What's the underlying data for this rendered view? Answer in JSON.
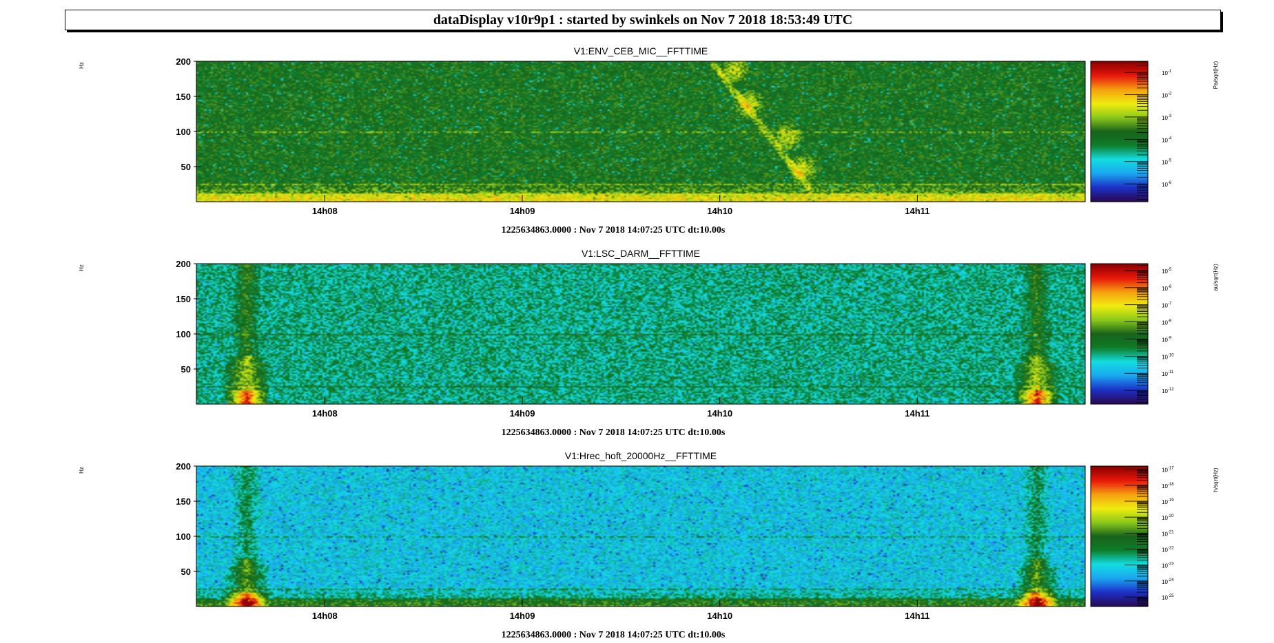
{
  "page_title": "dataDisplay v10r9p1 : started by swinkels on Nov  7 2018 18:53:49 UTC",
  "chart_data": [
    {
      "type": "heatmap",
      "title": "V1:ENV_CEB_MIC__FFTTIME",
      "ylabel": "Hz",
      "footer": "1225634863.0000 : Nov  7 2018 14:07:25 UTC dt:10.00s",
      "x_ticks": [
        "14h08",
        "14h09",
        "14h10",
        "14h11"
      ],
      "y_ticks": [
        50,
        100,
        150,
        200
      ],
      "ylim": [
        0,
        200
      ],
      "colorbar": {
        "unit": "Pa/sqrt(Hz)",
        "scale": "log",
        "range_exp": [
          -6.8,
          -0.5
        ],
        "tick_exponents": [
          "-1",
          "-2",
          "-3",
          "-4",
          "-5",
          "-6"
        ]
      },
      "palette": [
        "#2a0a55",
        "#1d31c8",
        "#1aa8f0",
        "#13dde0",
        "#0e7d2a",
        "#18631b",
        "#8cc81c",
        "#f0ec10",
        "#f5a00f",
        "#e8180c",
        "#8a0000"
      ],
      "background_level": 0.47,
      "features": [
        "whistle-chirp",
        "low-frequency-band",
        "spectral-lines"
      ]
    },
    {
      "type": "heatmap",
      "title": "V1:LSC_DARM__FFTTIME",
      "ylabel": "Hz",
      "footer": "1225634863.0000 : Nov  7 2018 14:07:25 UTC dt:10.00s",
      "x_ticks": [
        "14h08",
        "14h09",
        "14h10",
        "14h11"
      ],
      "y_ticks": [
        50,
        100,
        150,
        200
      ],
      "ylim": [
        0,
        200
      ],
      "colorbar": {
        "unit": "au/sqrt(Hz)",
        "scale": "log",
        "range_exp": [
          -12.8,
          -4.6
        ],
        "tick_exponents": [
          "-5",
          "-6",
          "-7",
          "-8",
          "-9",
          "-10",
          "-11",
          "-12"
        ]
      },
      "palette": [
        "#2a0a55",
        "#1d31c8",
        "#1aa8f0",
        "#13dde0",
        "#0e7d2a",
        "#18631b",
        "#8cc81c",
        "#f0ec10",
        "#f5a00f",
        "#e8180c",
        "#8a0000"
      ],
      "background_level": 0.36,
      "features": [
        "glitch-14h07.6",
        "glitch-14h11.6",
        "spectral-lines"
      ]
    },
    {
      "type": "heatmap",
      "title": "V1:Hrec_hoft_20000Hz__FFTTIME",
      "ylabel": "Hz",
      "footer": "1225634863.0000 : Nov  7 2018 14:07:25 UTC dt:10.00s",
      "x_ticks": [
        "14h08",
        "14h09",
        "14h10",
        "14h11"
      ],
      "y_ticks": [
        50,
        100,
        150,
        200
      ],
      "ylim": [
        0,
        200
      ],
      "colorbar": {
        "unit": "h/sqrt(Hz)",
        "scale": "log",
        "range_exp": [
          -25.6,
          -16.8
        ],
        "tick_exponents": [
          "-17",
          "-18",
          "-19",
          "-20",
          "-21",
          "-22",
          "-23",
          "-24",
          "-25"
        ]
      },
      "palette": [
        "#2a0a55",
        "#1d31c8",
        "#1aa8f0",
        "#13dde0",
        "#0e7d2a",
        "#18631b",
        "#8cc81c",
        "#f0ec10",
        "#f5a00f",
        "#e8180c",
        "#8a0000"
      ],
      "background_level": 0.27,
      "features": [
        "glitch-14h07.6",
        "glitch-14h11.6",
        "low-frequency-band",
        "spectral-lines"
      ]
    }
  ]
}
